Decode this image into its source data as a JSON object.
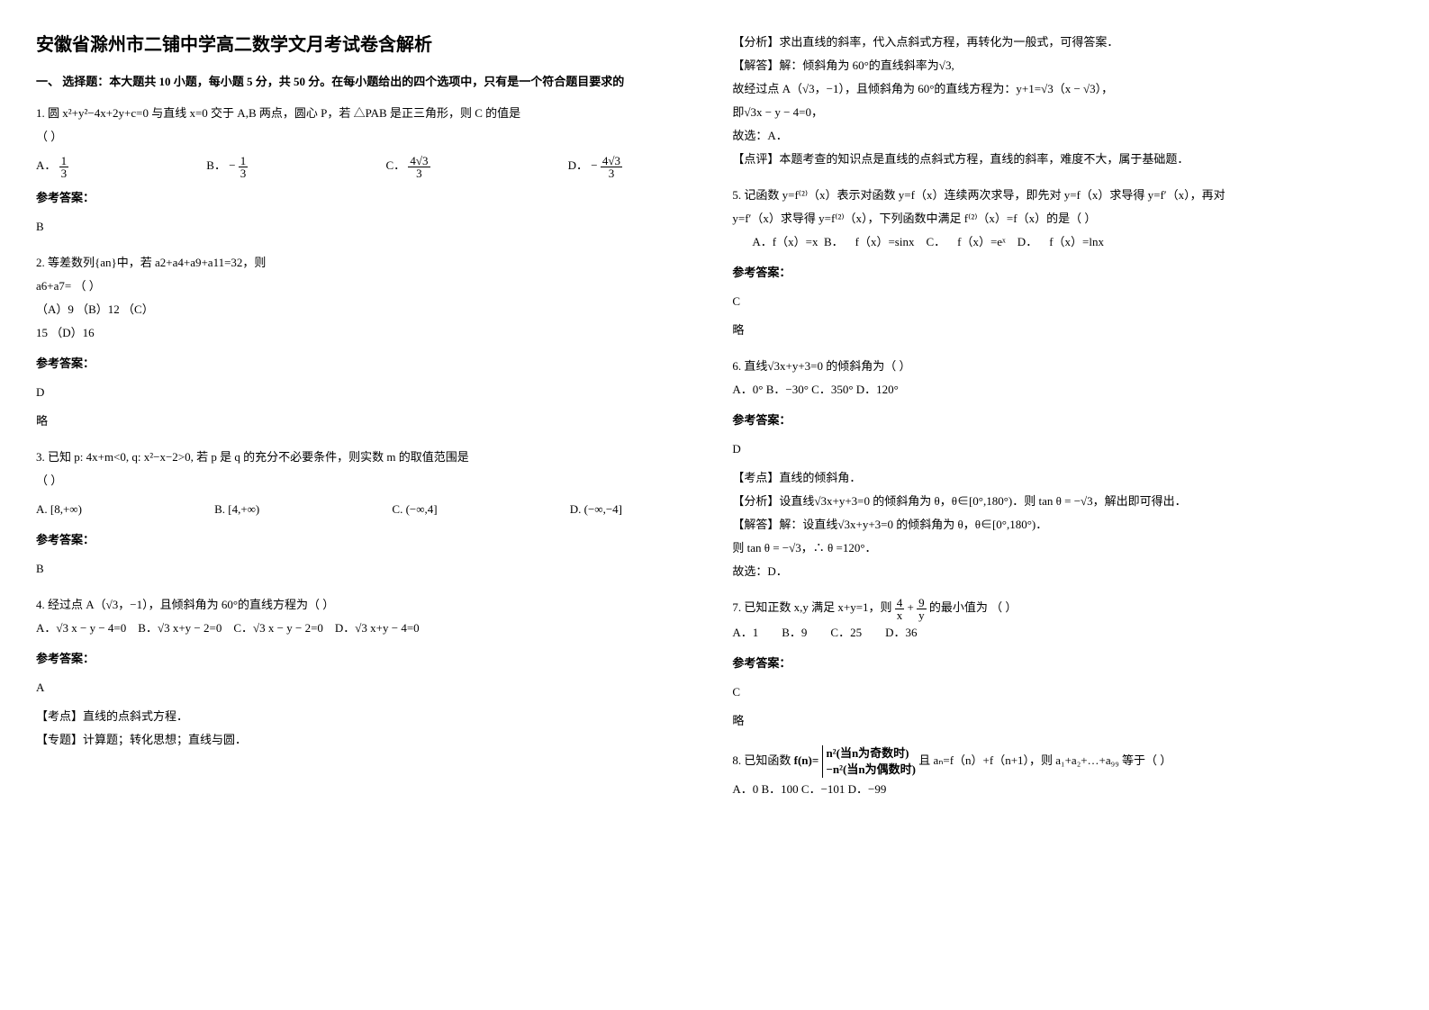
{
  "header": {
    "title": "安徽省滁州市二铺中学高二数学文月考试卷含解析",
    "section1": "一、 选择题：本大题共 10 小题，每小题 5 分，共 50 分。在每小题给出的四个选项中，只有是一个符合题目要求的"
  },
  "q1": {
    "stem_a": "1. 圆 x²+y²−4x+2y+c=0 与直线 x=0 交于 A,B 两点，圆心 P，若 △PAB 是正三角形，则 C 的值是",
    "stem_b": "（        ）",
    "A": "A．",
    "A_frac_num": "1",
    "A_frac_den": "3",
    "B": "B．",
    "B_neg": "−",
    "B_frac_num": "1",
    "B_frac_den": "3",
    "C": "C．",
    "C_frac_num": "4√3",
    "C_frac_den": "3",
    "D": "D．",
    "D_neg": "−",
    "D_frac_num": "4√3",
    "D_frac_den": "3",
    "ans_label": "参考答案：",
    "ans": "B"
  },
  "q2": {
    "stem_a": "2. 等差数列{an}中，若 a2+a4+a9+a11=32，则",
    "stem_b": "a6+a7=                                          （        ）",
    "choices_line1": "（A）9                             （B）12                                      （C）",
    "choices_line2": "15                             （D）16",
    "ans_label": "参考答案：",
    "ans": "D",
    "lue": "略"
  },
  "q3": {
    "stem": "3. 已知 p: 4x+m<0, q: x²−x−2>0, 若 p 是 q 的充分不必要条件，则实数 m 的取值范围是",
    "stem2": "（        ）",
    "A": "A. [8,+∞)",
    "B": "B. [4,+∞)",
    "C": "C. (−∞,4]",
    "D": "D. (−∞,−4]",
    "ans_label": "参考答案：",
    "ans": "B"
  },
  "q4": {
    "stem": "4. 经过点 A（√3，−1），且倾斜角为 60°的直线方程为（    ）",
    "A": "A．√3 x − y − 4=0",
    "B": "B．√3 x+y − 2=0",
    "C": "C．√3 x − y − 2=0",
    "D": "D．√3 x+y − 4=0",
    "ans_label": "参考答案：",
    "ans": "A",
    "kd_label": "【考点】直线的点斜式方程．",
    "zt_label": "【专题】计算题；转化思想；直线与圆．",
    "fx_label": "【分析】求出直线的斜率，代入点斜式方程，再转化为一般式，可得答案．",
    "jd_label": "【解答】解：倾斜角为 60°的直线斜率为√3,",
    "jd2": "故经过点 A（√3，−1），且倾斜角为 60°的直线方程为：y+1=√3（x − √3），",
    "jd3": "即√3x − y − 4=0，",
    "jd4": "故选：A．",
    "dp_label": "【点评】本题考查的知识点是直线的点斜式方程，直线的斜率，难度不大，属于基础题．"
  },
  "q5": {
    "stem": "5. 记函数 y=f⁽²⁾（x）表示对函数 y=f（x）连续两次求导，即先对 y=f（x）求导得 y=f′（x），再对",
    "stem2": "y=f′（x）求导得 y=f⁽²⁾（x），下列函数中满足 f⁽²⁾（x）=f（x）的是（    ）",
    "choices": "       A．f（x）=x  B．    f（x）=sinx    C．    f（x）=eˣ    D．    f（x）=lnx",
    "ans_label": "参考答案：",
    "ans": "C",
    "lue": "略"
  },
  "q6": {
    "stem": "6. 直线√3x+y+3=0 的倾斜角为（    ）",
    "choices": "A．0°  B．−30°    C．350°      D．120°",
    "ans_label": "参考答案：",
    "ans": "D",
    "kd": "【考点】直线的倾斜角．",
    "fx": "【分析】设直线√3x+y+3=0 的倾斜角为 θ，θ∈[0°,180°)．则 tan θ = −√3，解出即可得出．",
    "jd": "【解答】解：设直线√3x+y+3=0 的倾斜角为 θ，θ∈[0°,180°)．",
    "jd2": "则 tan θ = −√3，∴ θ =120°．",
    "jd3": "故选：D．"
  },
  "q7": {
    "stem_a": "7. 已知正数 x,y 满足 x+y=1，则 ",
    "frac1_num": "4",
    "frac1_den": "x",
    "plus": "+",
    "frac2_num": "9",
    "frac2_den": "y",
    "stem_b": " 的最小值为      （        ）",
    "A": "A．1",
    "B": "B．9",
    "C": "C．25",
    "D": "D．36",
    "ans_label": "参考答案：",
    "ans": "C",
    "lue": "略"
  },
  "q8": {
    "stem_a": "8. 已知函数 ",
    "fn": "f(n)=",
    "case1": "n²(当n为奇数时)",
    "case2": "−n²(当n为偶数时)",
    "stem_b": " 且 aₙ=f（n）+f（n+1），则 a₁+a₂+…+a₉₉ 等于（    ）",
    "choices": "A．0   B．100 C．−101      D．−99"
  }
}
